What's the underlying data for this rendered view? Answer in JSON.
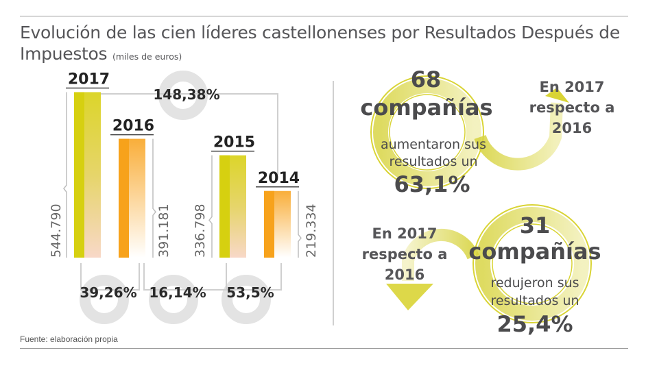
{
  "header": {
    "title": "Evolución de las cien líderes castellonenses por Resultados Después de Impuestos",
    "unit": "(miles de euros)"
  },
  "footer": {
    "source": "Fuente: elaboración propia"
  },
  "colors": {
    "lime": "#d4d11a",
    "orange": "#f7a21b",
    "ring_gray": "#e3e3e3",
    "text_dark": "#4b4b4d"
  },
  "chart_data": {
    "type": "bar",
    "title": "Evolución de las cien líderes castellonenses por Resultados Después de Impuestos",
    "unit": "miles de euros",
    "categories": [
      "2017",
      "2016",
      "2015",
      "2014"
    ],
    "values": [
      544790,
      391181,
      336798,
      219334
    ],
    "value_labels": [
      "544.790",
      "391.181",
      "336.798",
      "219.334"
    ],
    "bar_colors": [
      "lime",
      "orange",
      "lime",
      "orange"
    ],
    "ylim": [
      0,
      600000
    ],
    "grid": false,
    "comparisons": [
      {
        "from": "2016",
        "to": "2017",
        "label": "39,26%"
      },
      {
        "from": "2015",
        "to": "2016",
        "label": "16,14%"
      },
      {
        "from": "2014",
        "to": "2015",
        "label": "53,5%"
      },
      {
        "from": "2014",
        "to": "2017",
        "label": "148,38%"
      }
    ]
  },
  "panels": {
    "increase": {
      "count": "68",
      "unit": "compañías",
      "line1": "aumentaron sus",
      "line2": "resultados un",
      "percent": "63,1%",
      "note": [
        "En 2017",
        "respecto a",
        "2016"
      ]
    },
    "decrease": {
      "count": "31",
      "unit": "compañías",
      "line1": "redujeron sus",
      "line2": "resultados un",
      "percent": "25,4%",
      "note": [
        "En 2017",
        "respecto a",
        "2016"
      ]
    }
  }
}
